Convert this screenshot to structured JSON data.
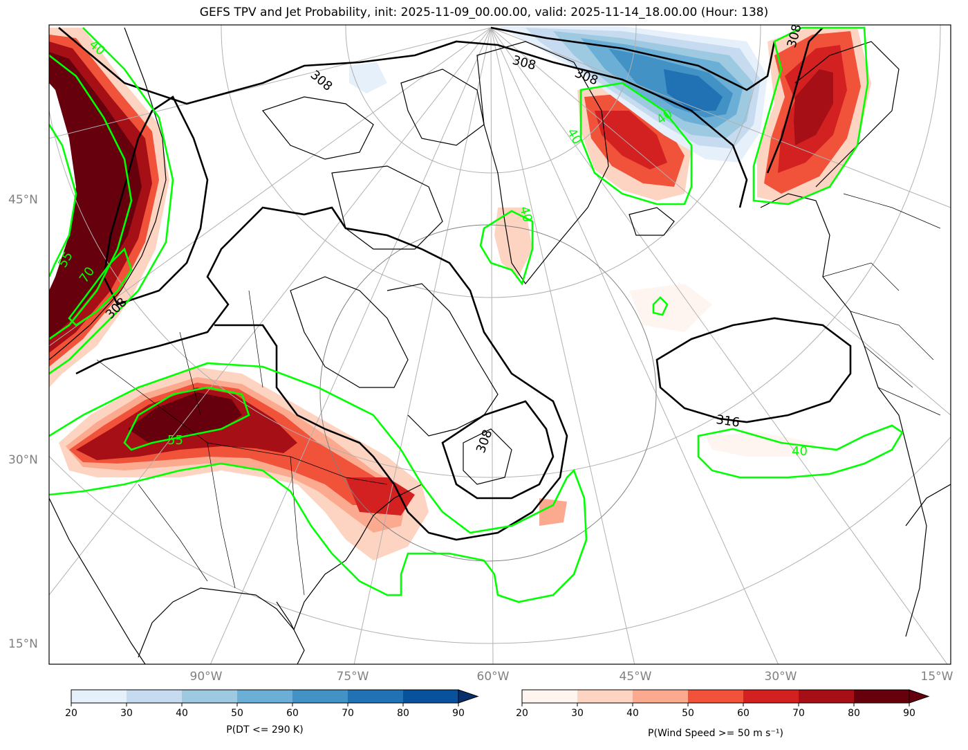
{
  "title": "GEFS TPV and Jet Probability, init: 2025-11-09_00.00.00, valid: 2025-11-14_18.00.00 (Hour: 138)",
  "lat_labels": [
    "45°N",
    "30°N",
    "15°N"
  ],
  "lon_labels": [
    "90°W",
    "75°W",
    "60°W",
    "45°W",
    "30°W",
    "15°W"
  ],
  "contour_labels": {
    "theta": [
      "308",
      "308",
      "308",
      "308",
      "308",
      "308",
      "316"
    ],
    "wind": [
      "40",
      "40",
      "40",
      "55",
      "70",
      "55",
      "40",
      "40"
    ]
  },
  "colorbars": [
    {
      "name": "tpv",
      "label": "P(DT <= 290 K)",
      "ticks": [
        "20",
        "30",
        "40",
        "50",
        "60",
        "70",
        "80",
        "90"
      ],
      "colors": [
        "#e6f0fa",
        "#c6dbef",
        "#9ecae1",
        "#6baed6",
        "#4292c6",
        "#2171b5",
        "#08519c"
      ],
      "extend_color": "#08306b"
    },
    {
      "name": "jet",
      "label": "P(Wind Speed >= 50 m s⁻¹)",
      "ticks": [
        "20",
        "30",
        "40",
        "50",
        "60",
        "70",
        "80",
        "90"
      ],
      "colors": [
        "#fff5f0",
        "#fdd4c2",
        "#fcaa8f",
        "#f0523a",
        "#d32020",
        "#a50f15",
        "#67000d"
      ],
      "extend_color": "#67000d"
    }
  ],
  "colors": {
    "theta_contour": "#000000",
    "wind_contour": "#00ff00",
    "grid": "#b0b0b0",
    "axis_label": "#808080"
  }
}
